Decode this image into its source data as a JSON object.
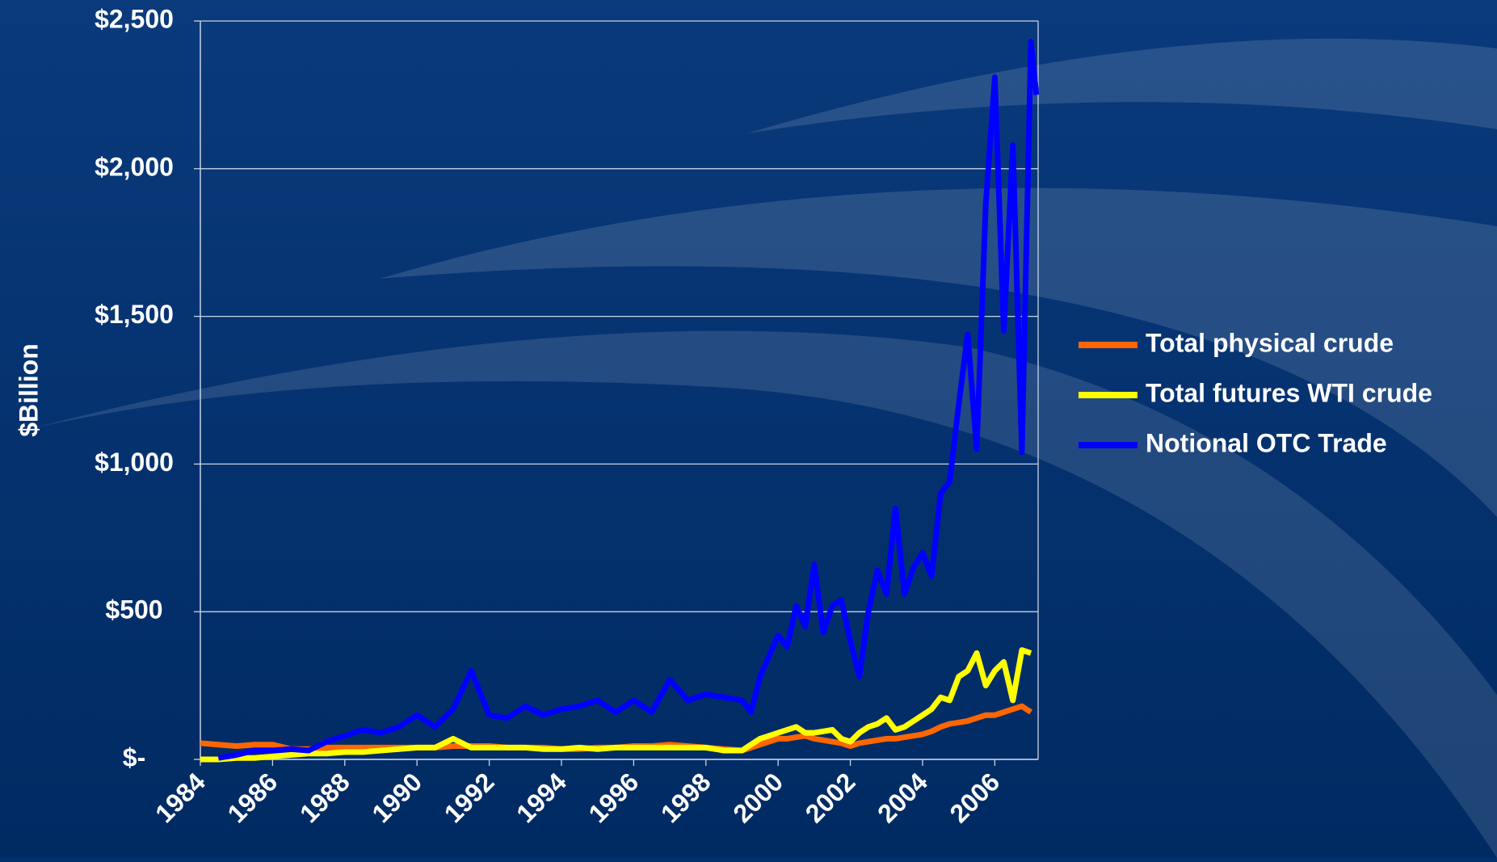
{
  "chart_data": {
    "type": "line",
    "y_label": "$Billion",
    "x": [
      1984,
      1984.5,
      1985,
      1985.5,
      1986,
      1986.5,
      1987,
      1987.5,
      1988,
      1988.5,
      1989,
      1989.5,
      1990,
      1990.5,
      1991,
      1991.5,
      1992,
      1992.5,
      1993,
      1993.5,
      1994,
      1994.5,
      1995,
      1995.5,
      1996,
      1996.5,
      1997,
      1997.5,
      1998,
      1998.5,
      1999,
      1999.25,
      1999.5,
      1999.75,
      2000,
      2000.25,
      2000.5,
      2000.75,
      2001,
      2001.25,
      2001.5,
      2001.75,
      2002,
      2002.25,
      2002.5,
      2002.75,
      2003,
      2003.25,
      2003.5,
      2003.75,
      2004,
      2004.25,
      2004.5,
      2004.75,
      2005,
      2005.25,
      2005.5,
      2005.75,
      2006,
      2006.25,
      2006.5,
      2006.75,
      2007,
      2007.15
    ],
    "series": [
      {
        "name": "Total physical crude",
        "color": "#ff6600",
        "values": [
          55,
          50,
          45,
          50,
          50,
          35,
          35,
          40,
          40,
          40,
          40,
          40,
          40,
          40,
          45,
          45,
          45,
          40,
          40,
          40,
          35,
          35,
          40,
          40,
          45,
          45,
          50,
          45,
          40,
          35,
          30,
          40,
          50,
          60,
          70,
          70,
          75,
          80,
          70,
          65,
          60,
          55,
          45,
          55,
          60,
          65,
          70,
          70,
          75,
          80,
          85,
          95,
          110,
          120,
          125,
          130,
          140,
          150,
          150,
          160,
          170,
          180,
          160,
          null
        ]
      },
      {
        "name": "Total futures WTI crude",
        "color": "#ffff00",
        "values": [
          0,
          0,
          5,
          5,
          10,
          15,
          20,
          20,
          25,
          25,
          30,
          35,
          40,
          40,
          70,
          40,
          40,
          40,
          40,
          35,
          35,
          40,
          35,
          40,
          40,
          40,
          40,
          40,
          40,
          30,
          30,
          50,
          70,
          80,
          90,
          100,
          110,
          90,
          90,
          95,
          100,
          70,
          60,
          90,
          110,
          120,
          140,
          100,
          110,
          130,
          150,
          170,
          210,
          200,
          280,
          300,
          360,
          250,
          300,
          330,
          200,
          370,
          360,
          null
        ]
      },
      {
        "name": "Notional OTC Trade",
        "color": "#0000ff",
        "values": [
          null,
          5,
          15,
          30,
          30,
          35,
          30,
          60,
          80,
          100,
          90,
          110,
          150,
          110,
          170,
          300,
          150,
          140,
          180,
          150,
          170,
          180,
          200,
          160,
          200,
          160,
          270,
          200,
          220,
          210,
          200,
          160,
          280,
          350,
          420,
          380,
          520,
          450,
          660,
          430,
          520,
          540,
          400,
          280,
          500,
          640,
          560,
          850,
          560,
          650,
          700,
          620,
          900,
          940,
          1200,
          1440,
          1050,
          1880,
          2310,
          1450,
          2080,
          1040,
          2430,
          2250
        ]
      }
    ],
    "xlim": [
      1984,
      2007.2
    ],
    "xticks": [
      1984,
      1986,
      1988,
      1990,
      1992,
      1994,
      1996,
      1998,
      2000,
      2002,
      2004,
      2006
    ],
    "ylim": [
      0,
      2500
    ],
    "yticks": [
      {
        "value": 0,
        "label": "$-"
      },
      {
        "value": 500,
        "label": "$500"
      },
      {
        "value": 1000,
        "label": "$1,000"
      },
      {
        "value": 1500,
        "label": "$1,500"
      },
      {
        "value": 2000,
        "label": "$2,000"
      },
      {
        "value": 2500,
        "label": "$2,500"
      }
    ],
    "grid": true,
    "legend": "right"
  }
}
